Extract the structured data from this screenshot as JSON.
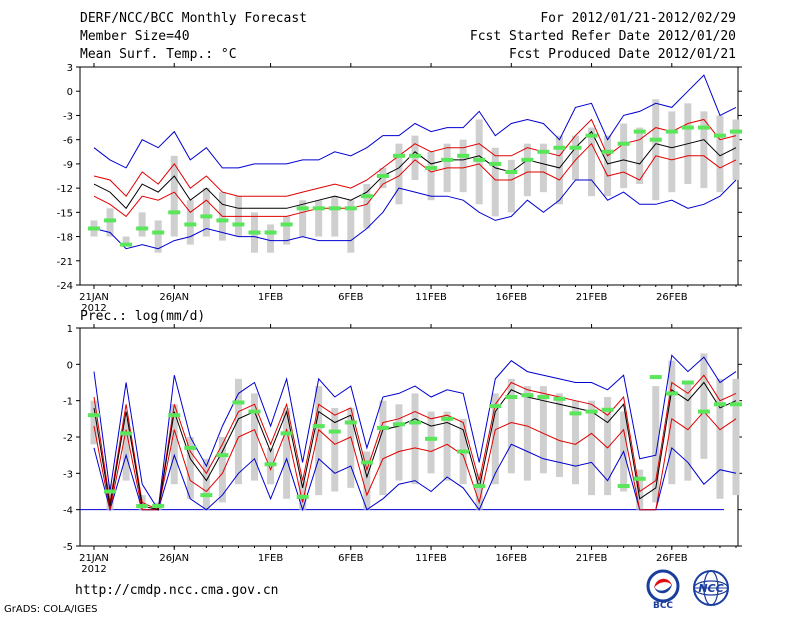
{
  "header": {
    "title": "DERF/NCC/BCC Monthly Forecast",
    "member_size": "Member Size=40",
    "variable": "Mean Surf. Temp.: °C",
    "period": "For 2012/01/21-2012/02/29",
    "started": "Fcst Started Refer Date 2012/01/20",
    "produced": "Fcst Produced Date 2012/01/21"
  },
  "footer": {
    "url": "http://cmdp.ncc.cma.gov.cn",
    "grads": "GrADS: COLA/IGES",
    "logo_bcc": "BCC",
    "logo_ncc": "NCC"
  },
  "colors": {
    "blue": "#0000d0",
    "red": "#e00000",
    "black": "#000000",
    "green": "#5ae65a",
    "gray": "#cfcfcf"
  },
  "x_ticks": [
    {
      "day": 0,
      "label": "21JAN",
      "sub": "2012"
    },
    {
      "day": 5,
      "label": "26JAN",
      "sub": ""
    },
    {
      "day": 11,
      "label": "1FEB",
      "sub": ""
    },
    {
      "day": 16,
      "label": "6FEB",
      "sub": ""
    },
    {
      "day": 21,
      "label": "11FEB",
      "sub": ""
    },
    {
      "day": 26,
      "label": "16FEB",
      "sub": ""
    },
    {
      "day": 31,
      "label": "21FEB",
      "sub": ""
    },
    {
      "day": 36,
      "label": "26FEB",
      "sub": ""
    }
  ],
  "chart_data": [
    {
      "type": "box-line",
      "title": "DERF/NCC/BCC Monthly Forecast",
      "ylabel": "Mean Surf. Temp.: °C",
      "ylim": [
        -24,
        3
      ],
      "yticks": [
        3,
        0,
        -3,
        -6,
        -9,
        -12,
        -15,
        -18,
        -21,
        -24
      ],
      "x_days": 40,
      "series": {
        "max": [
          -7,
          -8.5,
          -9.5,
          -6,
          -7,
          -5,
          -8.5,
          -7,
          -9.5,
          -9.5,
          -9,
          -9,
          -9,
          -8.5,
          -8.5,
          -7.5,
          -8,
          -7,
          -5.5,
          -5.5,
          -4,
          -5,
          -4.5,
          -4.5,
          -2.5,
          -5.5,
          -4,
          -3.5,
          -4,
          -6,
          -2,
          -1.5,
          -6,
          -3,
          -2.5,
          -1.5,
          -2,
          0,
          2,
          -3,
          -2
        ],
        "p90": [
          -10.5,
          -11,
          -13,
          -10,
          -11.5,
          -9,
          -12,
          -10.5,
          -12.5,
          -13,
          -13,
          -13,
          -13,
          -12.5,
          -12,
          -11.5,
          -12,
          -11,
          -9.5,
          -8,
          -6.5,
          -7.5,
          -7,
          -7,
          -6.5,
          -8,
          -8,
          -7,
          -7.5,
          -8,
          -5.5,
          -3.5,
          -8,
          -6.5,
          -6,
          -4.5,
          -5,
          -4,
          -3.5,
          -6,
          -5.5
        ],
        "mean": [
          -11.5,
          -12.5,
          -14.5,
          -11.5,
          -12.5,
          -10.5,
          -13.5,
          -12,
          -14,
          -14.5,
          -14.5,
          -14.5,
          -14.5,
          -14,
          -13.5,
          -13,
          -13.5,
          -12.5,
          -10.5,
          -9.5,
          -7.5,
          -9,
          -8.5,
          -8.5,
          -8,
          -9.5,
          -10,
          -8.5,
          -9,
          -9.5,
          -7,
          -5,
          -9,
          -8.5,
          -9,
          -6.5,
          -7,
          -6.5,
          -6,
          -8,
          -7
        ],
        "p10": [
          -13,
          -14,
          -15.5,
          -13,
          -13.5,
          -12.5,
          -15,
          -13.5,
          -15.5,
          -15.5,
          -15.5,
          -15.5,
          -15.5,
          -15,
          -14.5,
          -14.5,
          -14.5,
          -14,
          -11.5,
          -10.5,
          -8.5,
          -10,
          -9.5,
          -9.5,
          -9,
          -11,
          -11,
          -10,
          -10,
          -11,
          -8.5,
          -6.5,
          -10.5,
          -10,
          -11,
          -8,
          -8.5,
          -8,
          -8,
          -9.5,
          -8.5
        ],
        "min": [
          -17,
          -17.5,
          -19.5,
          -19,
          -19.5,
          -18.5,
          -18,
          -17,
          -17.5,
          -18,
          -18,
          -18.5,
          -18.5,
          -18,
          -18.5,
          -18.5,
          -18.5,
          -17,
          -15,
          -12,
          -12.5,
          -13,
          -13,
          -13.5,
          -15,
          -16,
          -15.5,
          -13.5,
          -15,
          -13.5,
          -11,
          -11,
          -13.5,
          -12.5,
          -14,
          -14,
          -13.5,
          -14.5,
          -14,
          -13,
          -11
        ],
        "obs": [
          -17,
          -16,
          -19,
          -17,
          -17.5,
          -15,
          -16.5,
          -15.5,
          -16,
          -16.5,
          -17.5,
          -17.5,
          -16.5,
          -14.5,
          -14.5,
          -14.5,
          -14.5,
          -13,
          -10.5,
          -8,
          -8,
          -9.5,
          -8.5,
          -8,
          -8.5,
          -9,
          -10,
          -8.5,
          -7.5,
          -7,
          -7,
          -5.5,
          -7.5,
          -6.5,
          -5,
          -6,
          -5,
          -4.5,
          -4.5,
          -5.5,
          -5
        ],
        "box_top": [
          -16,
          -14.5,
          -18,
          -15,
          -16,
          -8,
          -13.5,
          -12,
          -12.5,
          -13,
          -15,
          -16.5,
          -15.5,
          -13.5,
          -13.5,
          -13,
          -13.5,
          -11.5,
          -9.5,
          -6.5,
          -5.5,
          -7.5,
          -6.5,
          -6,
          -3.5,
          -7,
          -8.5,
          -6.5,
          -6.5,
          -5.5,
          -5.5,
          -4.5,
          -5.5,
          -4,
          -4.5,
          -1,
          -2.5,
          -1.5,
          -2.5,
          -3,
          -3.5
        ],
        "box_bottom": [
          -18,
          -18,
          -19,
          -18,
          -20,
          -18,
          -19,
          -18,
          -18.5,
          -18,
          -20,
          -20,
          -19,
          -18,
          -18,
          -18,
          -20,
          -17,
          -12,
          -14,
          -11,
          -13.5,
          -12.5,
          -12.5,
          -14,
          -15.5,
          -15,
          -13,
          -12.5,
          -14,
          -11,
          -13,
          -13,
          -12,
          -11.5,
          -13.5,
          -12.5,
          -11.5,
          -12,
          -12.5,
          -11
        ]
      }
    },
    {
      "type": "box-line",
      "title": "Prec.: log(mm/d)",
      "ylabel": "Prec.: log(mm/d)",
      "ylim": [
        -5,
        1
      ],
      "yticks": [
        1,
        0,
        -1,
        -2,
        -3,
        -4,
        -5
      ],
      "x_days": 40,
      "series": {
        "max": [
          -0.2,
          -3.5,
          -0.5,
          -3.3,
          -4,
          -0.3,
          -2,
          -2.8,
          -1.7,
          -0.8,
          -0.5,
          -1.7,
          -0.4,
          -2.7,
          -0.4,
          -0.9,
          -0.6,
          -2.3,
          -0.9,
          -0.8,
          -0.6,
          -0.9,
          -0.7,
          -0.8,
          -2.7,
          -0.4,
          0.1,
          -0.2,
          -0.3,
          -0.4,
          -0.5,
          -0.5,
          -0.7,
          -0.3,
          -2.6,
          -2.5,
          0.25,
          -0.2,
          0.2,
          -0.5,
          -0.2
        ],
        "p90": [
          -0.9,
          -3.8,
          -1.1,
          -3.8,
          -4,
          -1.1,
          -2.4,
          -3,
          -2.2,
          -1.3,
          -1.1,
          -2.2,
          -1.1,
          -3.2,
          -1.1,
          -1.4,
          -1.2,
          -2.9,
          -1.6,
          -1.5,
          -1.3,
          -1.5,
          -1.4,
          -1.6,
          -3.2,
          -1.1,
          -0.5,
          -0.7,
          -0.8,
          -0.9,
          -1,
          -1.1,
          -1.4,
          -0.9,
          -3.5,
          -3.2,
          -0.5,
          -0.8,
          -0.3,
          -1,
          -0.8
        ],
        "mean": [
          -1.2,
          -3.9,
          -1.3,
          -3.9,
          -4,
          -1.3,
          -2.6,
          -3.2,
          -2.4,
          -1.5,
          -1.3,
          -2.4,
          -1.3,
          -3.4,
          -1.3,
          -1.6,
          -1.4,
          -3.1,
          -1.8,
          -1.7,
          -1.5,
          -1.7,
          -1.6,
          -1.8,
          -3.4,
          -1.3,
          -0.7,
          -0.9,
          -1,
          -1.1,
          -1.2,
          -1.3,
          -1.6,
          -1.1,
          -3.7,
          -3.4,
          -0.7,
          -1,
          -0.5,
          -1.2,
          -1
        ],
        "p10": [
          -1.7,
          -4,
          -1.8,
          -4,
          -4,
          -1.8,
          -3.2,
          -3.5,
          -3,
          -2,
          -1.8,
          -2.9,
          -1.8,
          -3.8,
          -1.8,
          -2.2,
          -2,
          -3.6,
          -2.6,
          -2.4,
          -2.3,
          -2.4,
          -2.2,
          -2.5,
          -3.8,
          -1.8,
          -1.6,
          -1.7,
          -1.9,
          -2.1,
          -2.2,
          -1.9,
          -2.3,
          -1.8,
          -4,
          -4,
          -1.5,
          -1.8,
          -1.3,
          -1.8,
          -1.5
        ],
        "min": [
          -2.3,
          -4,
          -2.5,
          -4,
          -4,
          -2.5,
          -3.7,
          -4,
          -3.6,
          -3,
          -2.6,
          -3.7,
          -2.6,
          -4,
          -2.6,
          -3,
          -2.8,
          -4,
          -3.7,
          -3.3,
          -3.2,
          -3.5,
          -3.1,
          -3.4,
          -4,
          -3,
          -2.2,
          -2.4,
          -2.6,
          -2.7,
          -2.8,
          -2.7,
          -3.2,
          -2.4,
          -4,
          -4,
          -2.3,
          -2.7,
          -3.3,
          -2.9,
          -3
        ],
        "obs": [
          -1.4,
          -3.5,
          -1.9,
          -3.9,
          -3.9,
          -1.4,
          -2.3,
          -3.6,
          -2.5,
          -1.05,
          -1.3,
          -2.75,
          -1.9,
          -3.65,
          -1.7,
          -1.85,
          -1.6,
          -2.7,
          -1.75,
          -1.65,
          -1.6,
          -2.05,
          -1.5,
          -2.4,
          -3.35,
          -1.15,
          -0.9,
          -0.85,
          -0.9,
          -0.95,
          -1.35,
          -1.3,
          -1.25,
          -3.35,
          -3.15,
          -0.35,
          -0.8,
          -0.5,
          -1.3,
          -1.1,
          -1.1
        ],
        "box_top": [
          -1,
          -3.3,
          -1.5,
          -3.6,
          -3.8,
          -1.1,
          -2,
          -2.6,
          -2,
          -0.4,
          -0.8,
          -2.3,
          -1.2,
          -3.2,
          -0.6,
          -1.2,
          -1.2,
          -2.4,
          -1,
          -1.1,
          -0.8,
          -1.3,
          -1.3,
          -1.5,
          -3,
          -0.8,
          -0.4,
          -0.6,
          -0.6,
          -0.8,
          -1,
          -1,
          -0.9,
          -1.3,
          -2.9,
          -0.6,
          0.1,
          -0.5,
          0.3,
          -0.4,
          -0.4
        ],
        "box_bottom": [
          -2.2,
          -4,
          -3.2,
          -4,
          -4,
          -3.3,
          -3.7,
          -4,
          -3.8,
          -3.3,
          -3.2,
          -3.3,
          -3.7,
          -4,
          -3.6,
          -3.5,
          -3.4,
          -4,
          -3.6,
          -3.2,
          -3.3,
          -3,
          -3.2,
          -3.3,
          -4,
          -3.3,
          -3,
          -3.2,
          -3,
          -3.1,
          -3.3,
          -3.6,
          -3.6,
          -3.5,
          -4,
          -3.8,
          -3.3,
          -3.2,
          -2.6,
          -3.7,
          -3.6
        ]
      }
    }
  ]
}
